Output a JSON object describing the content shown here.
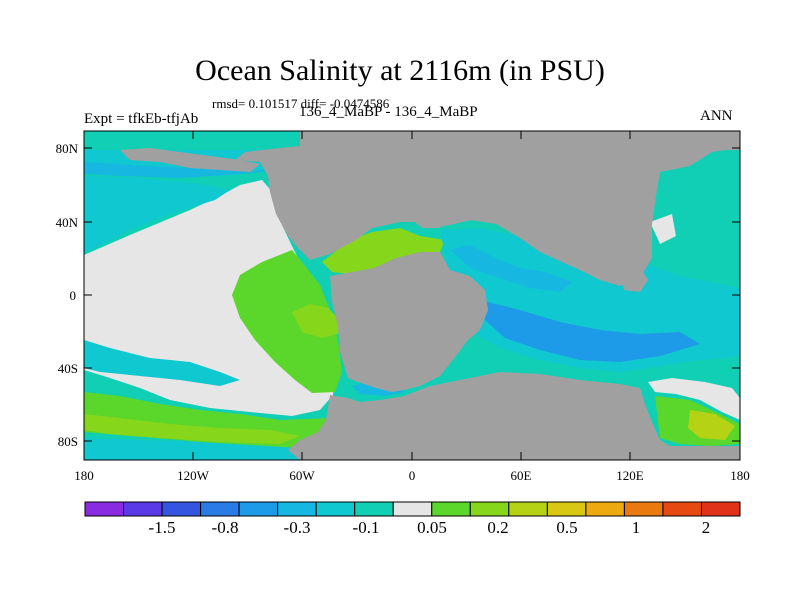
{
  "header": {
    "title": "Ocean Salinity at 2116m (in PSU)",
    "stats": "rmsd= 0.101517 diff= -0.0474586",
    "expt": "Expt = tfkEb-tfjAb",
    "case_label": "136_4_MaBP - 136_4_MaBP",
    "season": "ANN"
  },
  "axes": {
    "lat_ticks": [
      "80N",
      "40N",
      "0",
      "40S",
      "80S"
    ],
    "lon_ticks": [
      "180",
      "120W",
      "60W",
      "0",
      "60E",
      "120E",
      "180"
    ]
  },
  "colorbar": {
    "colors": [
      "#8a2be2",
      "#5a3ae6",
      "#3355e0",
      "#2a7be6",
      "#1e9be8",
      "#16b8e2",
      "#10c8d0",
      "#10cfb5",
      "#e6e6e6",
      "#5ad72a",
      "#86d61c",
      "#b6d215",
      "#d8c814",
      "#ecaa10",
      "#ea7a10",
      "#e64a12",
      "#e03218"
    ],
    "labels": [
      "-1.5",
      "-0.8",
      "-0.3",
      "-0.1",
      "0.05",
      "0.2",
      "0.5",
      "1",
      "2"
    ]
  },
  "palette": {
    "land": "#a0a0a0",
    "neutral": "#e6e6e6",
    "green_light": "#86d61c",
    "green": "#5ad72a",
    "green_teal": "#10cfb5",
    "cyan": "#10c8d0",
    "sky": "#16b8e2",
    "blue": "#1e9be8",
    "yellowgreen": "#b6d215"
  }
}
